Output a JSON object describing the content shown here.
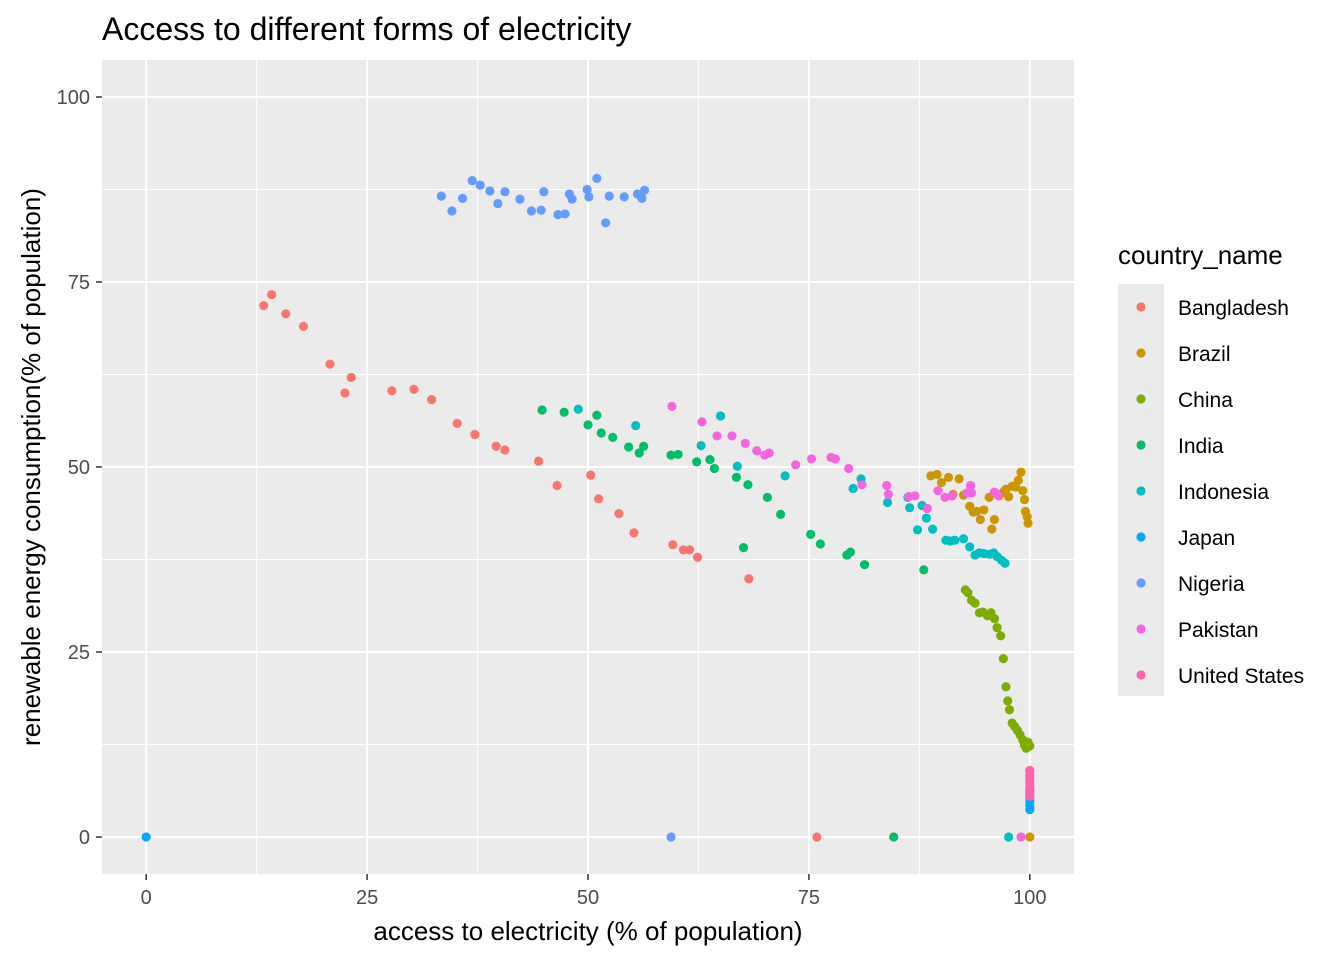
{
  "chart_data": {
    "type": "scatter",
    "title": "Access to different forms of electricity",
    "xlabel": "access to electricity (% of population)",
    "ylabel": "renewable energy consumption(% of population)",
    "xlim": [
      -5,
      105
    ],
    "ylim": [
      -5,
      105
    ],
    "x_ticks": [
      "0",
      "25",
      "50",
      "75",
      "100"
    ],
    "y_ticks": [
      "0",
      "25",
      "50",
      "75",
      "100"
    ],
    "grid": true,
    "legend": {
      "title": "country_name",
      "placement": "right"
    },
    "series": [
      {
        "name": "Bangladesh",
        "color": "#F8766D",
        "points": [
          [
            13.3,
            71.8
          ],
          [
            14.2,
            73.3
          ],
          [
            15.8,
            70.7
          ],
          [
            17.8,
            69.0
          ],
          [
            20.8,
            63.9
          ],
          [
            22.5,
            60.0
          ],
          [
            23.2,
            62.1
          ],
          [
            27.8,
            60.3
          ],
          [
            30.3,
            60.5
          ],
          [
            32.3,
            59.1
          ],
          [
            35.2,
            55.9
          ],
          [
            37.2,
            54.4
          ],
          [
            39.6,
            52.8
          ],
          [
            40.6,
            52.3
          ],
          [
            44.4,
            50.8
          ],
          [
            46.5,
            47.5
          ],
          [
            50.3,
            48.9
          ],
          [
            51.2,
            45.7
          ],
          [
            53.5,
            43.7
          ],
          [
            55.2,
            41.1
          ],
          [
            59.6,
            39.5
          ],
          [
            60.8,
            38.8
          ],
          [
            61.5,
            38.8
          ],
          [
            62.4,
            37.8
          ],
          [
            68.2,
            34.9
          ],
          [
            75.9,
            0
          ]
        ]
      },
      {
        "name": "Brazil",
        "color": "#CD9600",
        "points": [
          [
            88.8,
            48.8
          ],
          [
            89.5,
            49.0
          ],
          [
            90.0,
            47.9
          ],
          [
            90.8,
            48.6
          ],
          [
            91.3,
            46.3
          ],
          [
            92.0,
            48.4
          ],
          [
            92.5,
            46.2
          ],
          [
            93.2,
            44.7
          ],
          [
            93.6,
            43.9
          ],
          [
            94.0,
            44.0
          ],
          [
            94.4,
            42.9
          ],
          [
            94.8,
            44.2
          ],
          [
            95.4,
            45.9
          ],
          [
            95.7,
            41.6
          ],
          [
            96.0,
            42.9
          ],
          [
            96.5,
            46.1
          ],
          [
            97.0,
            46.6
          ],
          [
            97.3,
            47.0
          ],
          [
            97.6,
            46.0
          ],
          [
            98.0,
            47.4
          ],
          [
            98.4,
            47.3
          ],
          [
            98.7,
            48.2
          ],
          [
            99.0,
            49.3
          ],
          [
            99.2,
            46.8
          ],
          [
            99.4,
            45.6
          ],
          [
            99.5,
            44.0
          ],
          [
            99.7,
            43.3
          ],
          [
            99.8,
            42.4
          ],
          [
            100,
            0
          ]
        ]
      },
      {
        "name": "China",
        "color": "#7CAE00",
        "points": [
          [
            92.7,
            33.4
          ],
          [
            93.0,
            33.0
          ],
          [
            93.4,
            32.0
          ],
          [
            93.8,
            31.6
          ],
          [
            94.3,
            30.3
          ],
          [
            94.7,
            30.4
          ],
          [
            95.2,
            29.9
          ],
          [
            95.6,
            30.3
          ],
          [
            96.0,
            29.5
          ],
          [
            96.3,
            28.3
          ],
          [
            96.7,
            27.2
          ],
          [
            97.0,
            24.1
          ],
          [
            97.3,
            20.3
          ],
          [
            97.5,
            18.4
          ],
          [
            97.7,
            17.2
          ],
          [
            98.0,
            15.4
          ],
          [
            98.3,
            14.9
          ],
          [
            98.6,
            14.4
          ],
          [
            98.9,
            13.8
          ],
          [
            99.2,
            13.1
          ],
          [
            99.4,
            12.4
          ],
          [
            99.6,
            12.0
          ],
          [
            99.8,
            12.8
          ],
          [
            100,
            12.3
          ]
        ]
      },
      {
        "name": "India",
        "color": "#00BE67",
        "points": [
          [
            44.8,
            57.7
          ],
          [
            47.3,
            57.4
          ],
          [
            50.0,
            55.7
          ],
          [
            51.0,
            57.0
          ],
          [
            51.5,
            54.6
          ],
          [
            52.8,
            54.0
          ],
          [
            54.6,
            52.7
          ],
          [
            55.8,
            51.9
          ],
          [
            56.3,
            52.8
          ],
          [
            59.4,
            51.6
          ],
          [
            60.2,
            51.7
          ],
          [
            62.3,
            50.7
          ],
          [
            63.8,
            51.0
          ],
          [
            64.3,
            49.8
          ],
          [
            66.8,
            48.6
          ],
          [
            68.1,
            47.6
          ],
          [
            70.3,
            45.9
          ],
          [
            71.8,
            43.6
          ],
          [
            75.2,
            40.9
          ],
          [
            76.3,
            39.6
          ],
          [
            79.3,
            38.1
          ],
          [
            79.7,
            38.5
          ],
          [
            81.3,
            36.8
          ],
          [
            84.6,
            0
          ],
          [
            88.0,
            36.1
          ],
          [
            67.6,
            39.1
          ]
        ]
      },
      {
        "name": "Indonesia",
        "color": "#00BFC4",
        "points": [
          [
            48.9,
            57.8
          ],
          [
            55.4,
            55.6
          ],
          [
            62.8,
            52.9
          ],
          [
            65.0,
            56.9
          ],
          [
            66.9,
            50.1
          ],
          [
            72.3,
            48.8
          ],
          [
            80.0,
            47.1
          ],
          [
            80.9,
            48.4
          ],
          [
            83.9,
            45.2
          ],
          [
            86.2,
            45.9
          ],
          [
            86.4,
            44.5
          ],
          [
            87.3,
            41.5
          ],
          [
            87.8,
            44.8
          ],
          [
            88.3,
            43.1
          ],
          [
            89.0,
            41.6
          ],
          [
            90.5,
            40.1
          ],
          [
            91.0,
            40.0
          ],
          [
            91.5,
            40.1
          ],
          [
            92.5,
            40.3
          ],
          [
            93.2,
            39.2
          ],
          [
            93.8,
            38.1
          ],
          [
            94.3,
            38.4
          ],
          [
            94.8,
            38.3
          ],
          [
            95.4,
            38.2
          ],
          [
            95.9,
            38.4
          ],
          [
            96.3,
            37.9
          ],
          [
            96.8,
            37.4
          ],
          [
            97.2,
            37.0
          ],
          [
            97.6,
            0
          ]
        ]
      },
      {
        "name": "Japan",
        "color": "#00A9FF",
        "points": [
          [
            0,
            0
          ],
          [
            100,
            3.7
          ],
          [
            100,
            4.3
          ],
          [
            100,
            4.8
          ],
          [
            100,
            5.3
          ],
          [
            100,
            5.8
          ],
          [
            100,
            6.3
          ]
        ]
      },
      {
        "name": "Nigeria",
        "color": "#619CFF",
        "points": [
          [
            33.4,
            86.6
          ],
          [
            34.6,
            84.6
          ],
          [
            35.8,
            86.3
          ],
          [
            36.9,
            88.7
          ],
          [
            37.8,
            88.1
          ],
          [
            38.9,
            87.3
          ],
          [
            39.8,
            85.6
          ],
          [
            40.6,
            87.2
          ],
          [
            42.3,
            86.2
          ],
          [
            43.6,
            84.6
          ],
          [
            44.7,
            84.7
          ],
          [
            45.0,
            87.2
          ],
          [
            46.6,
            84.1
          ],
          [
            47.4,
            84.2
          ],
          [
            47.9,
            86.9
          ],
          [
            48.2,
            86.2
          ],
          [
            49.9,
            87.5
          ],
          [
            50.1,
            86.5
          ],
          [
            51.0,
            89.0
          ],
          [
            52.0,
            83.0
          ],
          [
            52.4,
            86.6
          ],
          [
            54.1,
            86.5
          ],
          [
            55.6,
            86.9
          ],
          [
            56.1,
            86.3
          ],
          [
            56.4,
            87.4
          ],
          [
            59.4,
            0
          ]
        ]
      },
      {
        "name": "Pakistan",
        "color": "#F564E3",
        "points": [
          [
            59.5,
            58.2
          ],
          [
            62.9,
            56.1
          ],
          [
            64.6,
            54.2
          ],
          [
            66.3,
            54.2
          ],
          [
            67.8,
            53.2
          ],
          [
            69.1,
            52.2
          ],
          [
            70.0,
            51.6
          ],
          [
            70.5,
            51.9
          ],
          [
            73.5,
            50.3
          ],
          [
            75.3,
            51.1
          ],
          [
            77.5,
            51.3
          ],
          [
            78.0,
            51.1
          ],
          [
            79.5,
            49.8
          ],
          [
            81.0,
            47.6
          ],
          [
            83.8,
            47.5
          ],
          [
            84.0,
            46.3
          ],
          [
            86.3,
            46.0
          ],
          [
            87.0,
            46.1
          ],
          [
            88.4,
            44.4
          ],
          [
            89.6,
            46.8
          ],
          [
            90.4,
            45.9
          ],
          [
            91.2,
            46.1
          ],
          [
            92.9,
            46.5
          ],
          [
            93.3,
            47.5
          ],
          [
            93.4,
            46.5
          ],
          [
            96.0,
            46.6
          ],
          [
            96.4,
            46.2
          ],
          [
            99.0,
            0
          ]
        ]
      },
      {
        "name": "United States",
        "color": "#FF64B0",
        "points": [
          [
            100,
            6.8
          ],
          [
            100,
            7.3
          ],
          [
            100,
            7.8
          ],
          [
            100,
            8.3
          ],
          [
            100,
            8.8
          ],
          [
            100,
            9.0
          ],
          [
            100,
            6.0
          ],
          [
            100,
            5.5
          ]
        ]
      }
    ]
  }
}
